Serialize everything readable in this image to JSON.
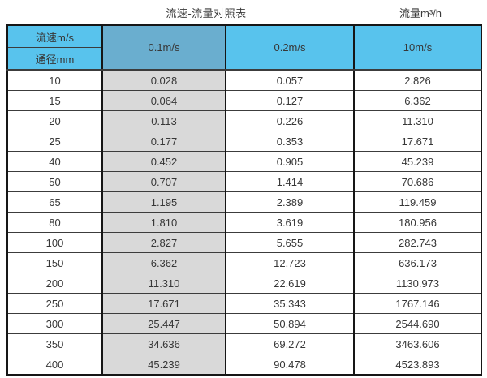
{
  "page": {
    "title": "流速-流量对照表",
    "unit_label": "流量m³/h"
  },
  "chart_data": {
    "type": "table",
    "title": "流速-流量对照表",
    "unit": "流量m³/h",
    "header": {
      "corner_top": "流速m/s",
      "corner_bottom": "通径mm",
      "velocity_columns": [
        "0.1m/s",
        "0.2m/s",
        "10m/s"
      ]
    },
    "rows": [
      {
        "diameter_mm": "10",
        "flow_m3h": [
          "0.028",
          "0.057",
          "2.826"
        ]
      },
      {
        "diameter_mm": "15",
        "flow_m3h": [
          "0.064",
          "0.127",
          "6.362"
        ]
      },
      {
        "diameter_mm": "20",
        "flow_m3h": [
          "0.113",
          "0.226",
          "11.310"
        ]
      },
      {
        "diameter_mm": "25",
        "flow_m3h": [
          "0.177",
          "0.353",
          "17.671"
        ]
      },
      {
        "diameter_mm": "40",
        "flow_m3h": [
          "0.452",
          "0.905",
          "45.239"
        ]
      },
      {
        "diameter_mm": "50",
        "flow_m3h": [
          "0.707",
          "1.414",
          "70.686"
        ]
      },
      {
        "diameter_mm": "65",
        "flow_m3h": [
          "1.195",
          "2.389",
          "119.459"
        ]
      },
      {
        "diameter_mm": "80",
        "flow_m3h": [
          "1.810",
          "3.619",
          "180.956"
        ]
      },
      {
        "diameter_mm": "100",
        "flow_m3h": [
          "2.827",
          "5.655",
          "282.743"
        ]
      },
      {
        "diameter_mm": "150",
        "flow_m3h": [
          "6.362",
          "12.723",
          "636.173"
        ]
      },
      {
        "diameter_mm": "200",
        "flow_m3h": [
          "11.310",
          "22.619",
          "1130.973"
        ]
      },
      {
        "diameter_mm": "250",
        "flow_m3h": [
          "17.671",
          "35.343",
          "1767.146"
        ]
      },
      {
        "diameter_mm": "300",
        "flow_m3h": [
          "25.447",
          "50.894",
          "2544.690"
        ]
      },
      {
        "diameter_mm": "350",
        "flow_m3h": [
          "34.636",
          "69.272",
          "3463.606"
        ]
      },
      {
        "diameter_mm": "400",
        "flow_m3h": [
          "45.239",
          "90.478",
          "4523.893"
        ]
      }
    ]
  },
  "colors": {
    "header_light_blue": "#58c3ed",
    "header_dark_blue": "#6aaecf",
    "gray_column": "#d9d9d9",
    "border": "#161616",
    "text": "#373737"
  }
}
